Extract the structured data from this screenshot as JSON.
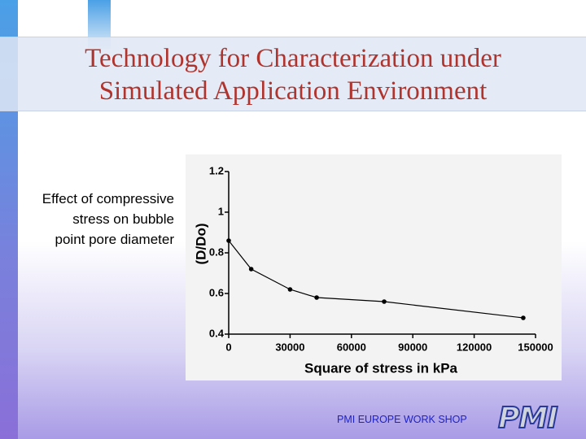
{
  "slide": {
    "title": [
      "Technology for Characterization under",
      "Simulated Application Environment"
    ],
    "caption": [
      "Effect of compressive",
      "stress on bubble",
      "point pore diameter"
    ],
    "footer": "PMI EUROPE WORK SHOP",
    "logo": "PMI"
  },
  "chart_data": {
    "type": "line",
    "xlabel": "Square of stress in kPa",
    "ylabel": "(D/Do)",
    "x": [
      0,
      11000,
      30000,
      43000,
      76000,
      144000
    ],
    "values": [
      0.86,
      0.72,
      0.62,
      0.58,
      0.56,
      0.48
    ],
    "color": "#000000",
    "xlim": [
      0,
      150000
    ],
    "xticks": [
      0,
      30000,
      60000,
      90000,
      120000,
      150000
    ],
    "ylim": [
      0.4,
      1.2
    ],
    "yticks": [
      0.4,
      0.6,
      0.8,
      1,
      1.2
    ]
  }
}
